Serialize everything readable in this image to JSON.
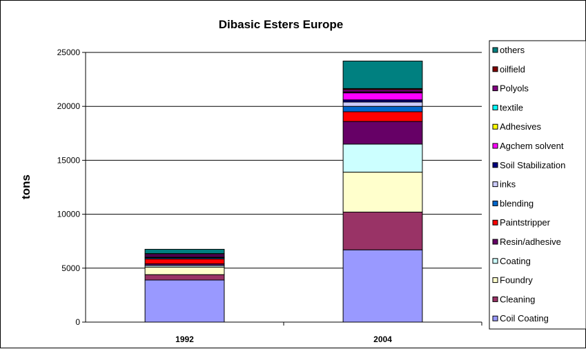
{
  "chart_data": {
    "type": "bar",
    "stacked": true,
    "title": "Dibasic Esters Europe",
    "xlabel": "",
    "ylabel": "tons",
    "ylim": [
      0,
      25000
    ],
    "yticks": [
      0,
      5000,
      10000,
      15000,
      20000,
      25000
    ],
    "grid": true,
    "legend_position": "right",
    "categories": [
      "1992",
      "2004"
    ],
    "series": [
      {
        "name": "Coil Coating",
        "color": "#9999FF",
        "values": [
          3900,
          6700
        ]
      },
      {
        "name": "Cleaning",
        "color": "#993366",
        "values": [
          500,
          3500
        ]
      },
      {
        "name": "Foundry",
        "color": "#FFFFCC",
        "values": [
          700,
          3700
        ]
      },
      {
        "name": "Coating",
        "color": "#CCFFFF",
        "values": [
          150,
          2600
        ]
      },
      {
        "name": "Resin/adhesive",
        "color": "#660066",
        "values": [
          150,
          2100
        ]
      },
      {
        "name": "Paintstripper",
        "color": "#FF0000",
        "values": [
          450,
          900
        ]
      },
      {
        "name": "blending",
        "color": "#0066CC",
        "values": [
          100,
          500
        ]
      },
      {
        "name": "inks",
        "color": "#CCCCFF",
        "values": [
          50,
          400
        ]
      },
      {
        "name": "Soil Stabilization",
        "color": "#000080",
        "values": [
          50,
          200
        ]
      },
      {
        "name": "Agchem solvent",
        "color": "#FF00FF",
        "values": [
          100,
          650
        ]
      },
      {
        "name": "Adhesives",
        "color": "#FFFF00",
        "values": [
          0,
          50
        ]
      },
      {
        "name": "textile",
        "color": "#00FFFF",
        "values": [
          0,
          50
        ]
      },
      {
        "name": "Polyols",
        "color": "#800080",
        "values": [
          150,
          200
        ]
      },
      {
        "name": "oilfield",
        "color": "#800000",
        "values": [
          50,
          100
        ]
      },
      {
        "name": "others",
        "color": "#008080",
        "values": [
          400,
          2550
        ]
      }
    ]
  }
}
